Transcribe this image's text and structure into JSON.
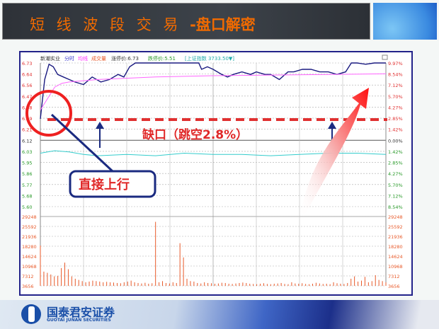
{
  "slide": {
    "title_a": "短 线 波 段 交 易 ",
    "title_b": "-盘口解密"
  },
  "footer": {
    "brand_cn": "国泰君安证券",
    "brand_en": "GUOTAI JUNAN SECURITIES"
  },
  "chart_header": {
    "stock": "新潮实业",
    "tab1": "分时",
    "tab2": "均线",
    "tab3": "成交量",
    "limit_up": "涨停价:6.73",
    "limit_down": "跌停价:5.51",
    "index": "[上证指数 3733.50▼]"
  },
  "annotations": {
    "gap": "缺口（跳空2.8%）",
    "direct_up": "直接上行"
  },
  "colors": {
    "price": "#1a1a80",
    "average": "#ff66ff",
    "index": "#33cccc",
    "volume": "#e85a2a",
    "up": "#e03030",
    "down": "#2a9a2a",
    "gap_line": "#e03030"
  },
  "chart_data": {
    "type": "line",
    "title": "",
    "price_ticks": [
      "6.73",
      "6.64",
      "6.56",
      "6.47",
      "6.38",
      "6.29",
      "6.21",
      "6.12",
      "6.03",
      "5.95",
      "5.86",
      "5.77",
      "5.68",
      "5.60"
    ],
    "pct_ticks": [
      "9.97%",
      "8.54%",
      "7.12%",
      "5.70%",
      "4.27%",
      "2.85%",
      "1.42%",
      "0.00%",
      "1.42%",
      "2.85%",
      "4.27%",
      "5.70%",
      "7.12%",
      "8.54%"
    ],
    "volume_ticks": [
      "29248",
      "25592",
      "21936",
      "18280",
      "14624",
      "10968",
      "7312",
      "3656"
    ],
    "ylim_price": [
      5.6,
      6.73
    ],
    "prev_close": 6.12,
    "series": [
      {
        "key": "price",
        "minutes": [
          0,
          3,
          6,
          9,
          12,
          16,
          20,
          24,
          30,
          36,
          42,
          48,
          54,
          58,
          62,
          66,
          70,
          74,
          80,
          86,
          90,
          100,
          110,
          112,
          116,
          120,
          126,
          130,
          134,
          140,
          146,
          150,
          156,
          160,
          166,
          172,
          176,
          182,
          188,
          194,
          200,
          206,
          212,
          216,
          220,
          226,
          232,
          240
        ],
        "values": [
          6.29,
          6.6,
          6.72,
          6.7,
          6.64,
          6.62,
          6.6,
          6.58,
          6.56,
          6.62,
          6.58,
          6.6,
          6.64,
          6.62,
          6.7,
          6.73,
          6.73,
          6.73,
          6.73,
          6.73,
          6.73,
          6.73,
          6.73,
          6.68,
          6.7,
          6.68,
          6.64,
          6.62,
          6.64,
          6.66,
          6.64,
          6.66,
          6.64,
          6.64,
          6.6,
          6.66,
          6.66,
          6.68,
          6.68,
          6.66,
          6.66,
          6.64,
          6.66,
          6.73,
          6.73,
          6.72,
          6.73,
          6.73
        ]
      },
      {
        "key": "average",
        "minutes": [
          0,
          5,
          10,
          15,
          20,
          40,
          80,
          120,
          160,
          200,
          240
        ],
        "values": [
          6.36,
          6.45,
          6.54,
          6.57,
          6.58,
          6.6,
          6.62,
          6.63,
          6.635,
          6.64,
          6.645
        ]
      },
      {
        "key": "index",
        "minutes": [
          0,
          10,
          20,
          30,
          40,
          60,
          80,
          100,
          120,
          140,
          160,
          180,
          200,
          220,
          240
        ],
        "values": [
          6.02,
          6.04,
          6.03,
          6.01,
          6.0,
          6.01,
          6.0,
          6.02,
          6.01,
          6.01,
          6.0,
          6.01,
          6.02,
          6.02,
          6.01
        ]
      }
    ],
    "volume": [
      17000,
      6000,
      5500,
      4800,
      4000,
      4200,
      7500,
      9800,
      7000,
      4000,
      3000,
      2500,
      2000,
      1500,
      1800,
      2200,
      2000,
      1800,
      1500,
      1700,
      1500,
      1400,
      1200,
      1100,
      1500,
      1800,
      2200,
      1500,
      1200,
      1000,
      1300,
      900,
      1100,
      27000,
      1500,
      2000,
      1200,
      1000,
      1500,
      1200,
      18000,
      12000,
      3000,
      2000,
      1800,
      1200,
      1000,
      1500,
      1200,
      1100,
      900,
      1000,
      1300,
      1200,
      900,
      800,
      1000,
      1200,
      1400,
      1200,
      900,
      800,
      700,
      900,
      1100,
      800,
      700,
      900,
      1000,
      1200,
      800,
      700,
      1500,
      1000,
      900,
      1100,
      800,
      700,
      900,
      1300,
      1000,
      800,
      900,
      700,
      1500,
      1100,
      900,
      800,
      1200,
      3000,
      4000,
      1800,
      2200,
      3800,
      1500,
      2000,
      4500,
      2500,
      2000,
      1500
    ]
  }
}
